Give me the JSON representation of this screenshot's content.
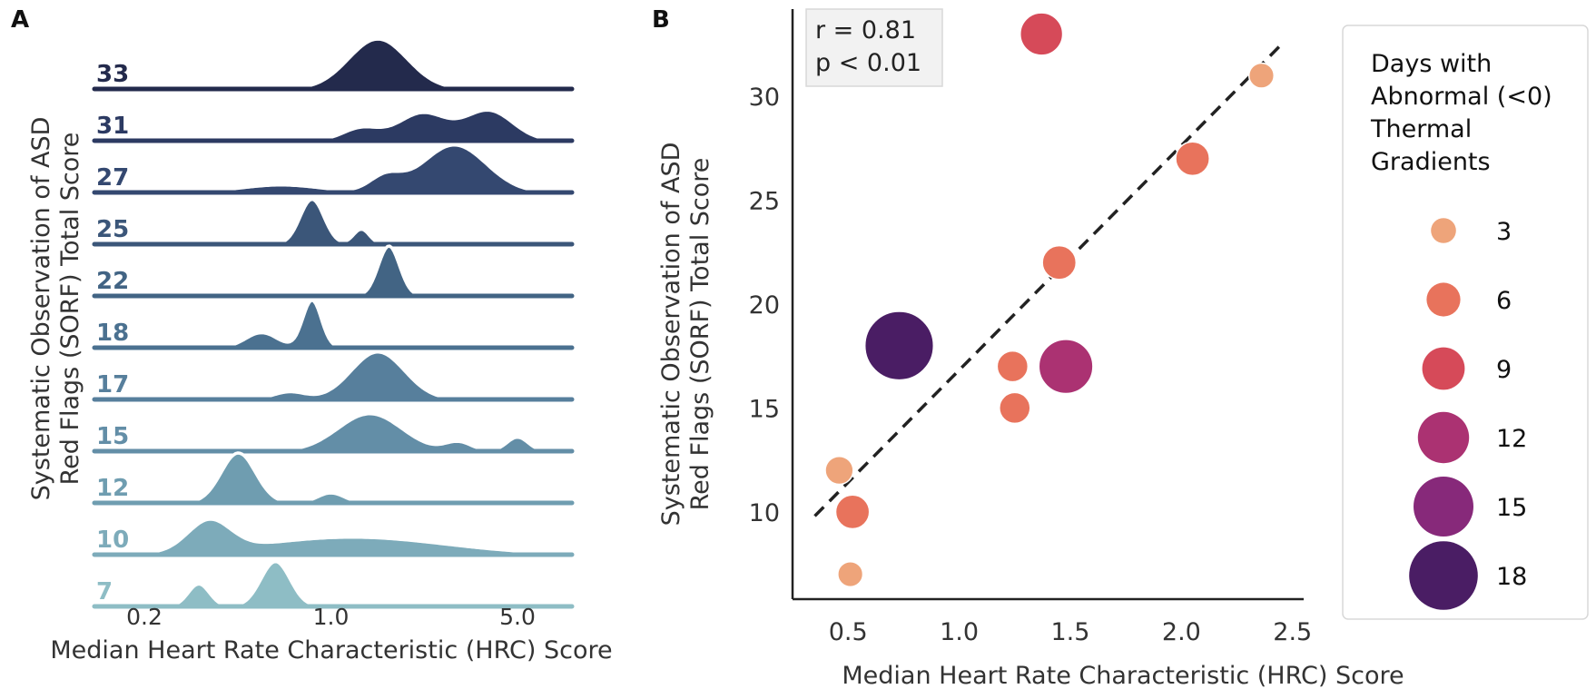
{
  "chart_data": [
    {
      "panel": "A",
      "type": "area",
      "xlabel": "Median Heart Rate Characteristic (HRC) Score",
      "ylabel_line1": "Systematic Observation of ASD",
      "ylabel_line2": "Red Flags (SORF) Total Score",
      "x_scale": "log",
      "xlim": [
        0.13,
        8.0
      ],
      "x_ticks": [
        0.2,
        1.0,
        5.0
      ],
      "x_tick_labels": [
        "0.2",
        "1.0",
        "5.0"
      ],
      "grid": false,
      "series": [
        {
          "name": "33",
          "color": "#232a4c",
          "peaks": [
            [
              1.5,
              0.11,
              1.0
            ]
          ],
          "start": 0.45
        },
        {
          "name": "31",
          "color": "#2c3a62",
          "peaks": [
            [
              1.3,
              0.07,
              0.25
            ],
            [
              2.2,
              0.09,
              0.55
            ],
            [
              3.9,
              0.09,
              0.6
            ]
          ],
          "start": 1.0
        },
        {
          "name": "27",
          "color": "#344870",
          "peaks": [
            [
              0.65,
              0.15,
              0.15
            ],
            [
              1.6,
              0.06,
              0.3
            ],
            [
              2.9,
              0.12,
              0.95
            ]
          ],
          "start": 0.28
        },
        {
          "name": "25",
          "color": "#3b5679",
          "peaks": [
            [
              0.85,
              0.045,
              0.9
            ],
            [
              1.3,
              0.03,
              0.3
            ]
          ],
          "start": 0.3
        },
        {
          "name": "22",
          "color": "#426484",
          "peaks": [
            [
              1.65,
              0.04,
              1.0
            ]
          ],
          "start": 0.5
        },
        {
          "name": "18",
          "color": "#4b7190",
          "peaks": [
            [
              0.85,
              0.035,
              0.95
            ],
            [
              0.55,
              0.06,
              0.3
            ]
          ],
          "start": 0.17
        },
        {
          "name": "17",
          "color": "#577f9c",
          "peaks": [
            [
              1.5,
              0.1,
              0.95
            ],
            [
              0.7,
              0.06,
              0.15
            ]
          ],
          "start": 0.32
        },
        {
          "name": "15",
          "color": "#638ea7",
          "peaks": [
            [
              1.4,
              0.12,
              0.75
            ],
            [
              5.0,
              0.04,
              0.28
            ],
            [
              3.0,
              0.05,
              0.18
            ]
          ],
          "start": 0.3
        },
        {
          "name": "12",
          "color": "#6f9db0",
          "peaks": [
            [
              0.45,
              0.065,
              1.0
            ],
            [
              1.0,
              0.05,
              0.2
            ]
          ],
          "start": 0.18
        },
        {
          "name": "10",
          "color": "#7dabba",
          "peaks": [
            [
              0.35,
              0.08,
              0.6
            ],
            [
              1.2,
              0.35,
              0.35
            ]
          ],
          "start": 0.14
        },
        {
          "name": "7",
          "color": "#8ebdc5",
          "peaks": [
            [
              0.32,
              0.04,
              0.45
            ],
            [
              0.62,
              0.055,
              0.9
            ]
          ],
          "start": 0.16
        }
      ]
    },
    {
      "panel": "B",
      "type": "scatter",
      "xlabel": "Median Heart Rate Characteristic (HRC) Score",
      "ylabel_line1": "Systematic Observation of ASD",
      "ylabel_line2": "Red Flags (SORF) Total Score",
      "xlim": [
        0.25,
        2.55
      ],
      "ylim": [
        5.8,
        34.2
      ],
      "x_ticks": [
        0.5,
        1.0,
        1.5,
        2.0,
        2.5
      ],
      "x_tick_labels": [
        "0.5",
        "1.0",
        "1.5",
        "2.0",
        "2.5"
      ],
      "y_ticks": [
        10,
        15,
        20,
        25,
        30
      ],
      "y_tick_labels": [
        "10",
        "15",
        "20",
        "25",
        "30"
      ],
      "grid": false,
      "annotation_line1": "r = 0.81",
      "annotation_line2": "p < 0.01",
      "regression_line": {
        "x": [
          0.35,
          2.45
        ],
        "y": [
          9.8,
          32.5
        ]
      },
      "points": [
        {
          "x": 1.37,
          "y": 33,
          "size": 9
        },
        {
          "x": 2.36,
          "y": 31,
          "size": 3
        },
        {
          "x": 2.05,
          "y": 27,
          "size": 6
        },
        {
          "x": 1.45,
          "y": 22,
          "size": 6
        },
        {
          "x": 0.73,
          "y": 18,
          "size": 18
        },
        {
          "x": 1.24,
          "y": 17,
          "size": 5
        },
        {
          "x": 1.48,
          "y": 17,
          "size": 13
        },
        {
          "x": 1.25,
          "y": 15,
          "size": 5
        },
        {
          "x": 0.46,
          "y": 12,
          "size": 4
        },
        {
          "x": 0.52,
          "y": 10,
          "size": 6
        },
        {
          "x": 0.51,
          "y": 7,
          "size": 3
        }
      ],
      "legend": {
        "title_lines": [
          "Days with",
          "Abnormal (<0)",
          "Thermal",
          "Gradients"
        ],
        "placement": "right",
        "entries": [
          {
            "label": "3",
            "size": 3,
            "color": "#eea47a"
          },
          {
            "label": "6",
            "size": 6,
            "color": "#e8735c"
          },
          {
            "label": "9",
            "size": 9,
            "color": "#d64a59"
          },
          {
            "label": "12",
            "size": 12,
            "color": "#ab3272"
          },
          {
            "label": "15",
            "size": 15,
            "color": "#87297a"
          },
          {
            "label": "18",
            "size": 18,
            "color": "#4a1d64"
          }
        ]
      }
    }
  ],
  "panel_labels": [
    "A",
    "B"
  ]
}
